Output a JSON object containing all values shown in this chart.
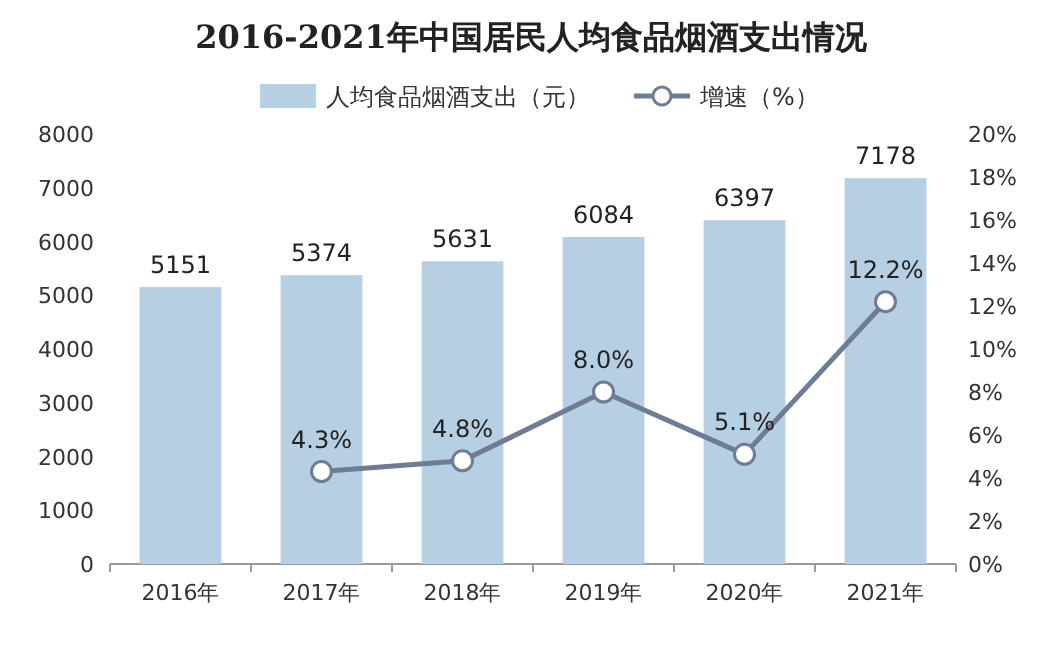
{
  "chart_data": {
    "type": "bar",
    "title": "2016-2021年中国居民人均食品烟酒支出情况",
    "categories": [
      "2016年",
      "2017年",
      "2018年",
      "2019年",
      "2020年",
      "2021年"
    ],
    "series": [
      {
        "name": "人均食品烟酒支出（元）",
        "color": "#b7cfe2",
        "values": [
          5151,
          5374,
          5631,
          6084,
          6397,
          7178
        ],
        "value_labels": [
          "5151",
          "5374",
          "5631",
          "6084",
          "6397",
          "7178"
        ]
      },
      {
        "name": "增速（%）",
        "type": "line",
        "axis": "y2",
        "color": "#6e7d93",
        "marker": "circle",
        "values": [
          null,
          4.3,
          4.8,
          8.0,
          5.1,
          12.2
        ],
        "value_labels": [
          null,
          "4.3%",
          "4.8%",
          "8.0%",
          "5.1%",
          "12.2%"
        ]
      }
    ],
    "ylim": [
      0,
      8000
    ],
    "yticks": [
      0,
      1000,
      2000,
      3000,
      4000,
      5000,
      6000,
      7000,
      8000
    ],
    "y2lim": [
      0,
      20
    ],
    "y2ticks": [
      {
        "value": 0,
        "label": "0%"
      },
      {
        "value": 2,
        "label": "2%"
      },
      {
        "value": 4,
        "label": "4%"
      },
      {
        "value": 6,
        "label": "6%"
      },
      {
        "value": 8,
        "label": "8%"
      },
      {
        "value": 10,
        "label": "10%"
      },
      {
        "value": 12,
        "label": "12%"
      },
      {
        "value": 14,
        "label": "14%"
      },
      {
        "value": 16,
        "label": "16%"
      },
      {
        "value": 18,
        "label": "18%"
      },
      {
        "value": 20,
        "label": "20%"
      }
    ],
    "legend": "top",
    "grid": false
  }
}
